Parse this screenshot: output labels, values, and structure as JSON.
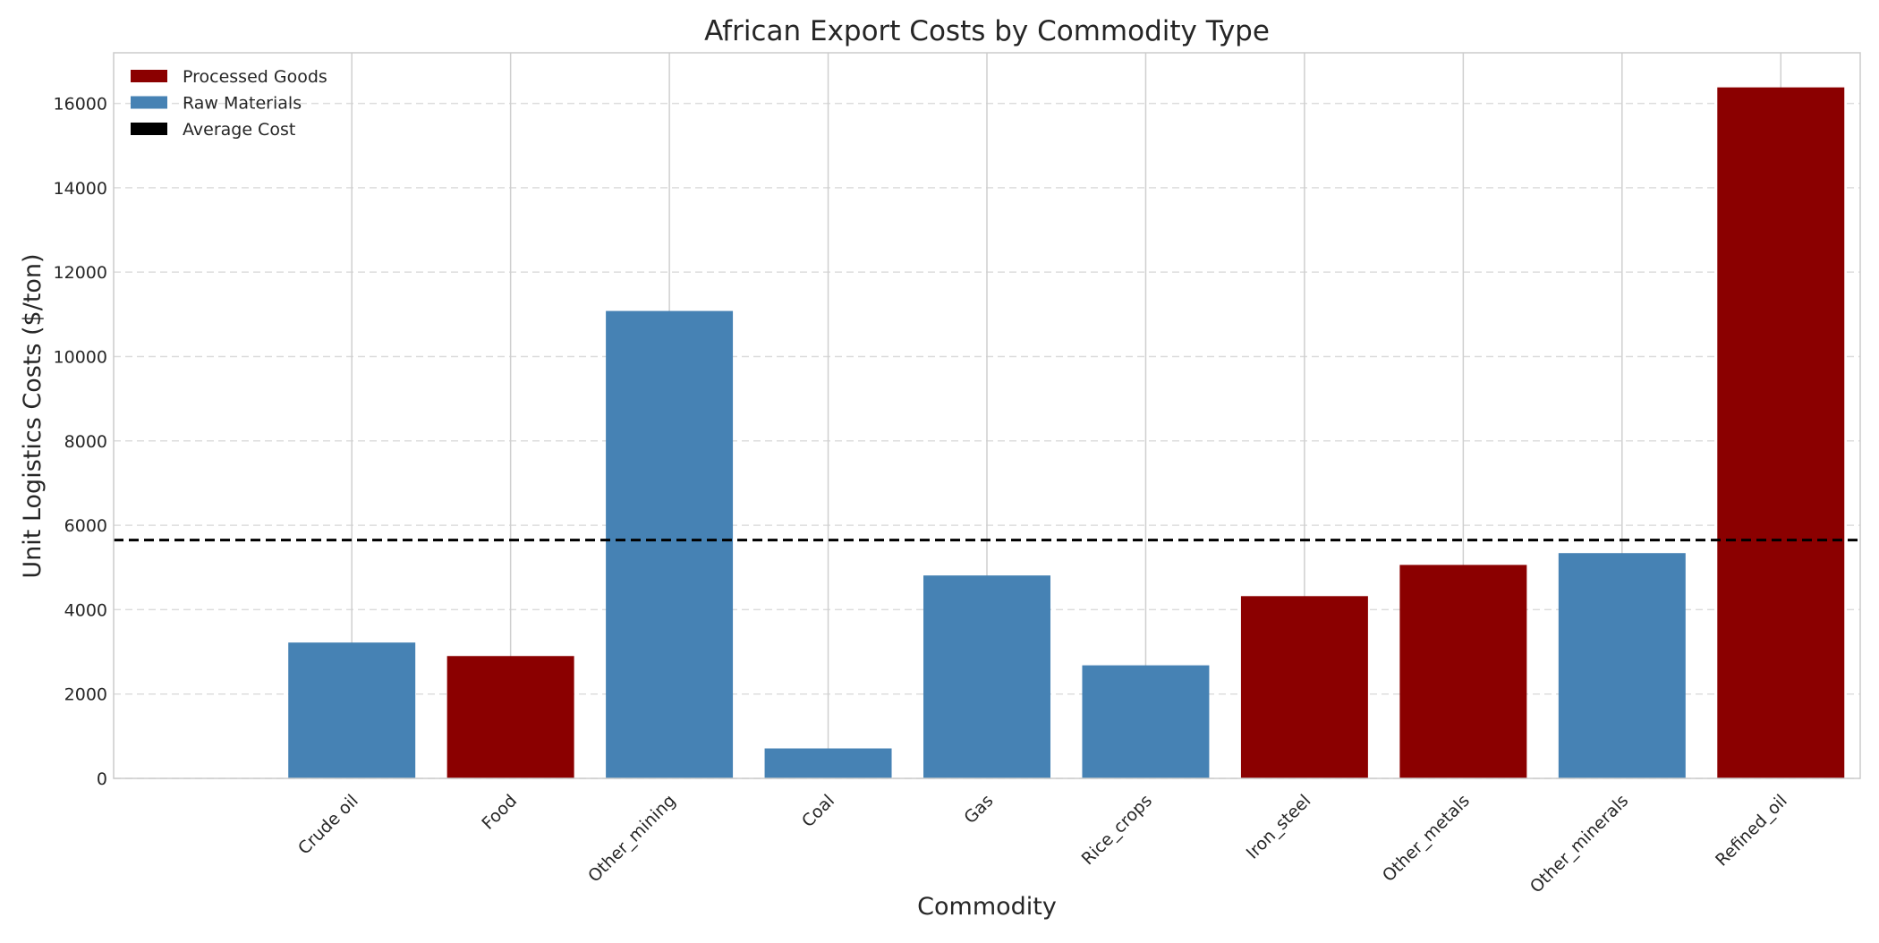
{
  "chart_data": {
    "type": "bar",
    "title": "African Export Costs by Commodity Type",
    "xlabel": "Commodity",
    "ylabel": "Unit Logistics Costs ($/ton)",
    "categories": [
      "Crude oil",
      "Food",
      "Other_mining",
      "Coal",
      "Gas",
      "Rice_crops",
      "Iron_steel",
      "Other_metals",
      "Other_minerals",
      "Refined_oil"
    ],
    "values": [
      3220,
      2900,
      11080,
      710,
      4810,
      2680,
      4320,
      5060,
      5340,
      16380
    ],
    "groups": [
      "Raw Materials",
      "Processed Goods",
      "Raw Materials",
      "Raw Materials",
      "Raw Materials",
      "Raw Materials",
      "Processed Goods",
      "Processed Goods",
      "Raw Materials",
      "Processed Goods"
    ],
    "average_cost": 5650,
    "ylim": [
      0,
      17200
    ],
    "yticks": [
      0,
      2000,
      4000,
      6000,
      8000,
      10000,
      12000,
      14000,
      16000
    ],
    "grid": true,
    "legend_position": "top-left",
    "legend": [
      {
        "label": "Processed Goods",
        "color": "#8b0000"
      },
      {
        "label": "Raw Materials",
        "color": "#4682b4"
      },
      {
        "label": "Average Cost",
        "color": "#000000"
      }
    ],
    "colors": {
      "Processed Goods": "#8b0000",
      "Raw Materials": "#4682b4",
      "Average Cost": "#000000"
    }
  }
}
